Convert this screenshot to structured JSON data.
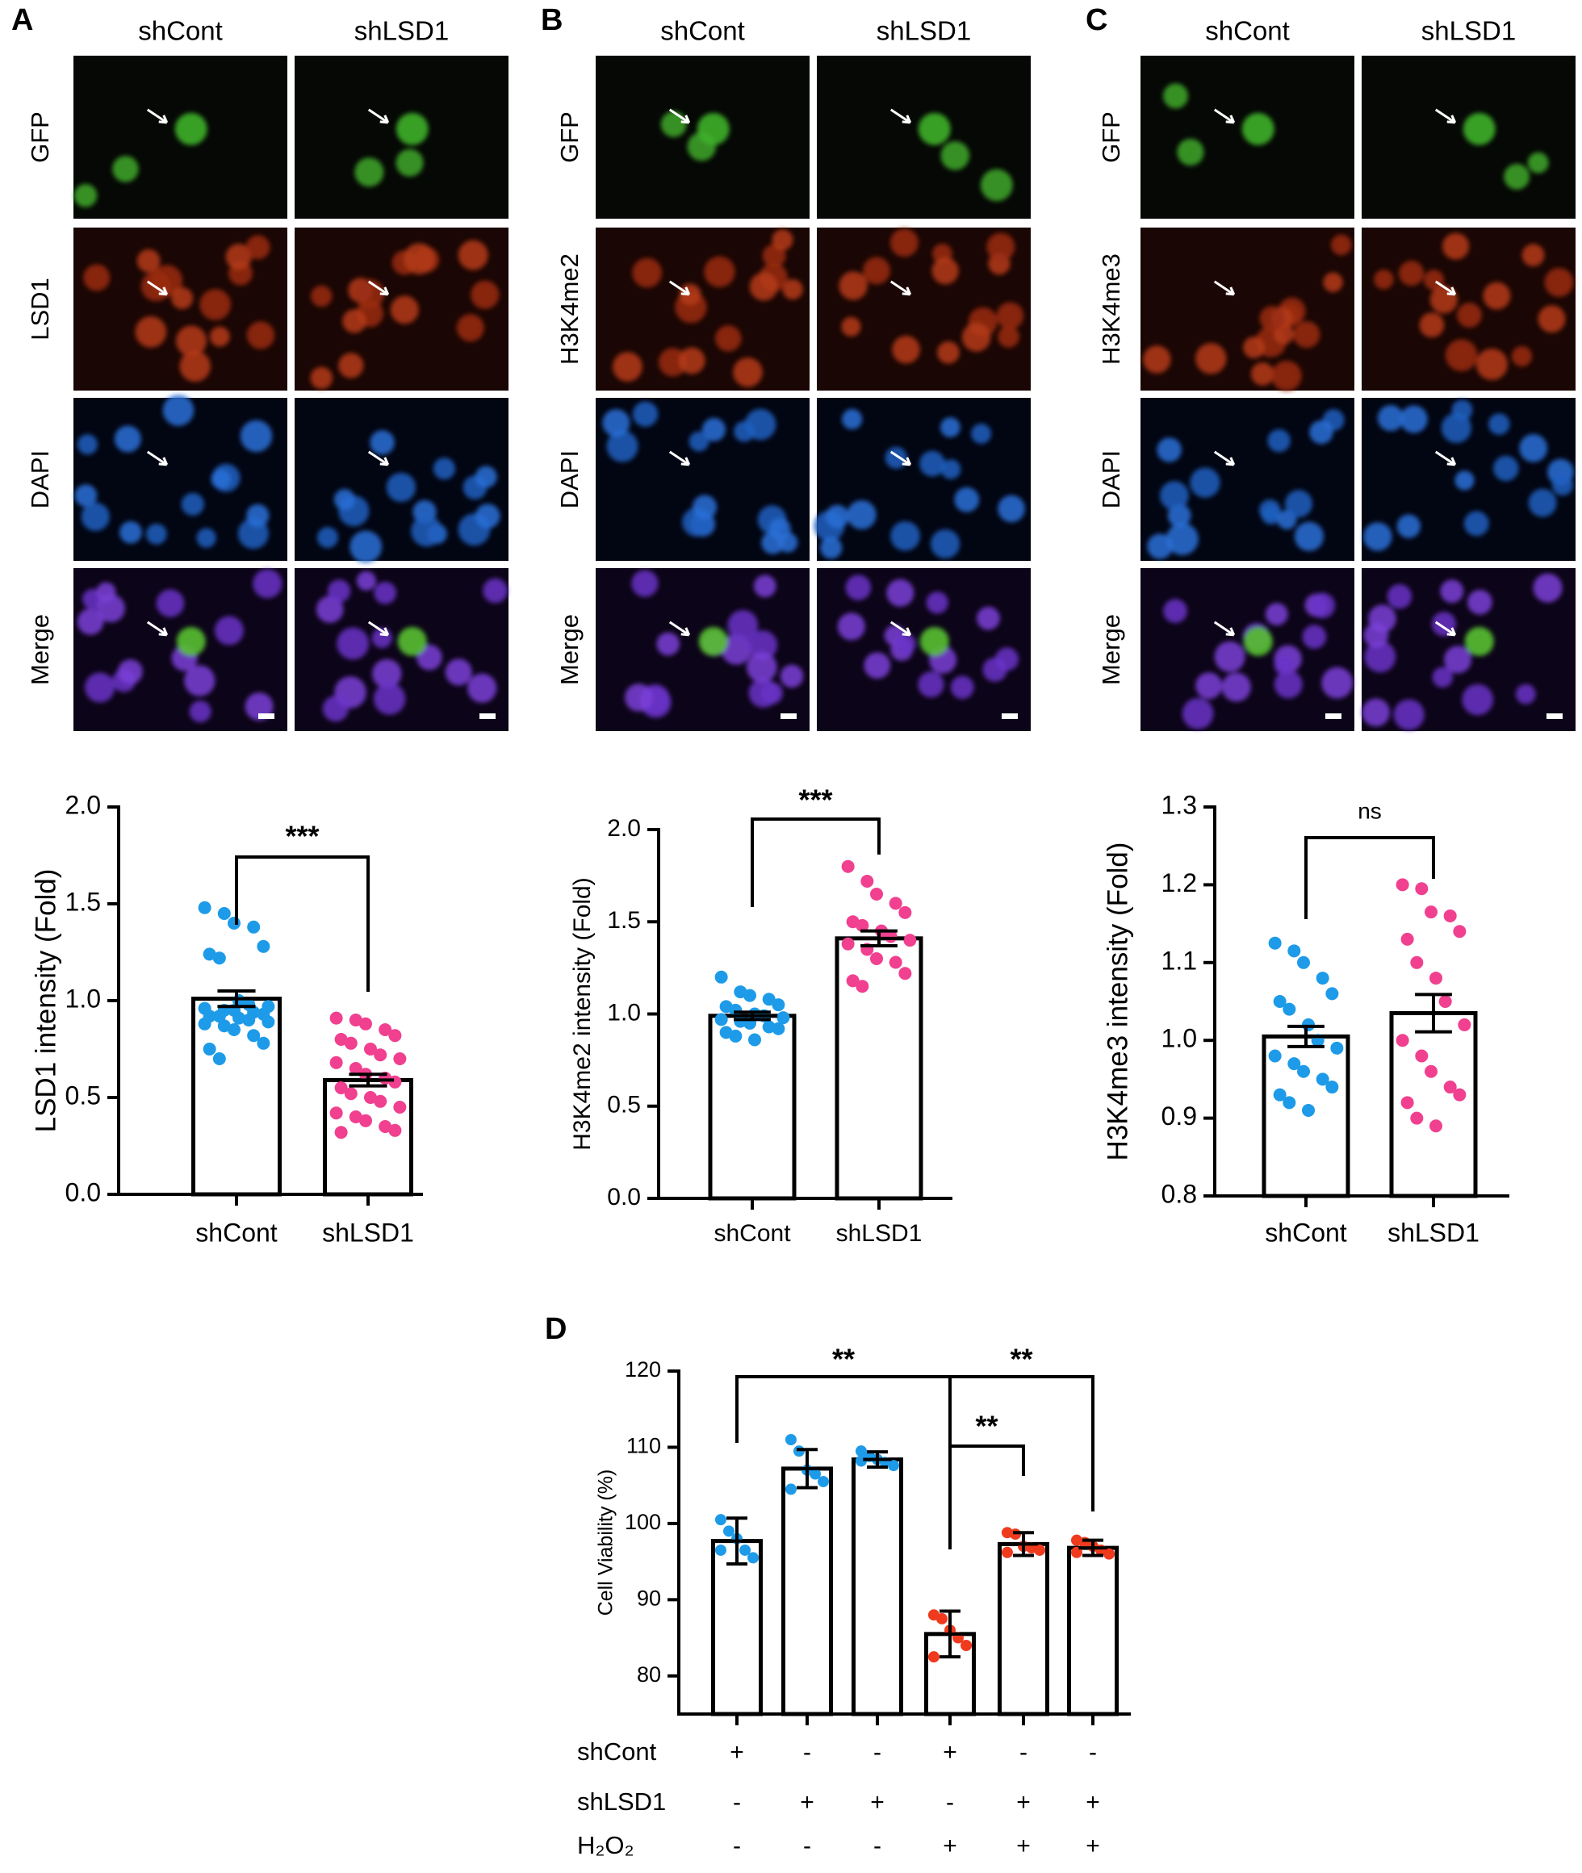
{
  "panels": [
    {
      "letter": "A",
      "columns": [
        "shCont",
        "shLSD1"
      ],
      "rows": [
        "GFP",
        "LSD1",
        "DAPI",
        "Merge"
      ]
    },
    {
      "letter": "B",
      "columns": [
        "shCont",
        "shLSD1"
      ],
      "rows": [
        "GFP",
        "H3K4me2",
        "DAPI",
        "Merge"
      ]
    },
    {
      "letter": "C",
      "columns": [
        "shCont",
        "shLSD1"
      ],
      "rows": [
        "GFP",
        "H3K4me3",
        "DAPI",
        "Merge"
      ]
    }
  ],
  "chart_data": [
    {
      "type": "bar",
      "ylabel": "LSD1 intensity (Fold)",
      "categories": [
        "shCont",
        "shLSD1"
      ],
      "values": [
        1.01,
        0.59
      ],
      "errors": [
        0.04,
        0.03
      ],
      "points": [
        [
          1.48,
          1.45,
          1.4,
          1.38,
          1.28,
          1.24,
          1.22,
          1.0,
          0.98,
          0.97,
          0.96,
          0.95,
          0.95,
          0.94,
          0.93,
          0.92,
          0.92,
          0.91,
          0.9,
          0.89,
          0.88,
          0.87,
          0.85,
          0.82,
          0.78,
          0.75,
          0.7
        ],
        [
          0.91,
          0.9,
          0.88,
          0.85,
          0.82,
          0.8,
          0.78,
          0.75,
          0.72,
          0.7,
          0.68,
          0.65,
          0.62,
          0.6,
          0.58,
          0.55,
          0.52,
          0.5,
          0.48,
          0.45,
          0.42,
          0.4,
          0.38,
          0.35,
          0.33,
          0.32
        ]
      ],
      "point_colors": [
        "#1e9be8",
        "#f0408f"
      ],
      "significance": [
        "***"
      ],
      "ylim": [
        0,
        2
      ],
      "yticks": [
        {
          "value": 0,
          "label": "0.0"
        },
        0.5,
        {
          "value": 1,
          "label": "1.0"
        },
        1.5,
        {
          "value": 2,
          "label": "2.0"
        }
      ]
    },
    {
      "type": "bar",
      "ylabel": "H3K4me2 intensity (Fold)",
      "categories": [
        "shCont",
        "shLSD1"
      ],
      "values": [
        0.99,
        1.41
      ],
      "errors": [
        0.02,
        0.04
      ],
      "points": [
        [
          1.2,
          1.12,
          1.1,
          1.08,
          1.05,
          1.04,
          1.02,
          1.0,
          0.99,
          0.98,
          0.97,
          0.96,
          0.95,
          0.93,
          0.92,
          0.9,
          0.88,
          0.86
        ],
        [
          1.8,
          1.72,
          1.65,
          1.6,
          1.55,
          1.5,
          1.48,
          1.45,
          1.42,
          1.4,
          1.38,
          1.35,
          1.3,
          1.28,
          1.22,
          1.18,
          1.15
        ]
      ],
      "point_colors": [
        "#1e9be8",
        "#f0408f"
      ],
      "significance": [
        "***"
      ],
      "ylim": [
        0,
        2
      ],
      "yticks": [
        {
          "value": 0,
          "label": "0.0"
        },
        0.5,
        {
          "value": 1,
          "label": "1.0"
        },
        1.5,
        {
          "value": 2,
          "label": "2.0"
        }
      ]
    },
    {
      "type": "bar",
      "ylabel": "H3K4me3 intensity (Fold)",
      "categories": [
        "shCont",
        "shLSD1"
      ],
      "values": [
        1.005,
        1.035
      ],
      "errors": [
        0.013,
        0.024
      ],
      "points": [
        [
          1.125,
          1.115,
          1.1,
          1.08,
          1.06,
          1.05,
          1.04,
          1.02,
          1.0,
          0.99,
          0.98,
          0.97,
          0.96,
          0.95,
          0.94,
          0.93,
          0.92,
          0.91
        ],
        [
          1.2,
          1.195,
          1.165,
          1.16,
          1.14,
          1.13,
          1.1,
          1.08,
          1.05,
          1.02,
          1.0,
          0.98,
          0.96,
          0.94,
          0.93,
          0.92,
          0.9,
          0.89
        ]
      ],
      "point_colors": [
        "#1e9be8",
        "#f0408f"
      ],
      "significance": [
        "ns"
      ],
      "ylim": [
        0.8,
        1.3
      ],
      "yticks": [
        0.8,
        0.9,
        {
          "value": 1,
          "label": "1.0"
        },
        1.1,
        1.2,
        1.3
      ]
    },
    {
      "type": "bar",
      "letter": "D",
      "ylabel": "Cell Viability (%)",
      "categories": [
        null,
        null,
        null,
        null,
        null,
        null
      ],
      "values": [
        97.7,
        107.2,
        108.4,
        85.5,
        97.3,
        96.8
      ],
      "errors": [
        3,
        2.5,
        1,
        3,
        1.5,
        1
      ],
      "points": [
        [
          100.5,
          99,
          98,
          96.5,
          95.5,
          96.5
        ],
        [
          111,
          109.5,
          107,
          106.5,
          105.5,
          104.5
        ],
        [
          109.5,
          108.8,
          108.4,
          108,
          107.6,
          108.2
        ],
        [
          88,
          87.5,
          86,
          85,
          84,
          82.5
        ],
        [
          98.8,
          98.6,
          97,
          96.8,
          96.5,
          96.2
        ],
        [
          97.8,
          97.5,
          97,
          96.5,
          96,
          96.2
        ]
      ],
      "point_colors": [
        "#1e9be8",
        "#1e9be8",
        "#1e9be8",
        "#f03a1e",
        "#f03a1e",
        "#f03a1e"
      ],
      "significance": [
        "**",
        "**",
        "**"
      ],
      "conditions": [
        {
          "label": "shCont",
          "values": [
            "+",
            "-",
            "-",
            "+",
            "-",
            "-"
          ]
        },
        {
          "label": "shLSD1",
          "values": [
            "-",
            "+",
            "+",
            "-",
            "+",
            "+"
          ]
        },
        {
          "label": "H₂O₂",
          "values": [
            "-",
            "-",
            "-",
            "+",
            "+",
            "+"
          ]
        }
      ],
      "ylim": [
        75,
        120
      ],
      "yticks": [
        80,
        90,
        100,
        110,
        120
      ]
    }
  ]
}
